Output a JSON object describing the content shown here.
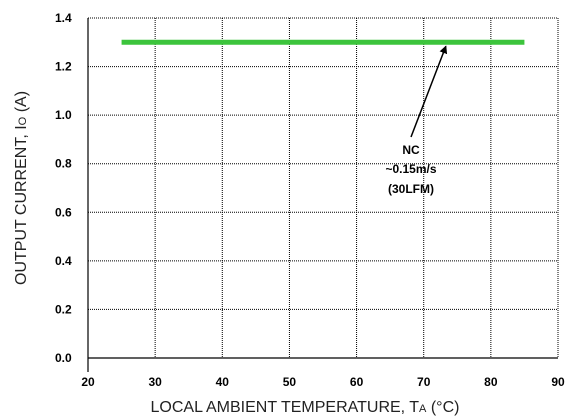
{
  "chart_data": {
    "type": "line",
    "xlabel": "LOCAL AMBIENT TEMPERATURE, T",
    "xlabel_sub": "A",
    "xlabel_unit": " (°C)",
    "ylabel": "OUTPUT CURRENT, I",
    "ylabel_sub": "O",
    "ylabel_unit": " (A)",
    "xlim": [
      20,
      90
    ],
    "ylim": [
      0.0,
      1.4
    ],
    "x_ticks": [
      "20",
      "30",
      "40",
      "50",
      "60",
      "70",
      "80",
      "90"
    ],
    "y_ticks": [
      "0.0",
      "0.2",
      "0.4",
      "0.6",
      "0.8",
      "1.0",
      "1.2",
      "1.4"
    ],
    "grid": true,
    "series": [
      {
        "x": [
          25,
          85
        ],
        "y": [
          1.3,
          1.3
        ],
        "color": "#3cc43c"
      }
    ],
    "annotation": {
      "lines": [
        "NC",
        "~0.15m/s",
        "(30LFM)"
      ],
      "arrow_target": {
        "x": 73,
        "y": 1.3
      }
    }
  }
}
